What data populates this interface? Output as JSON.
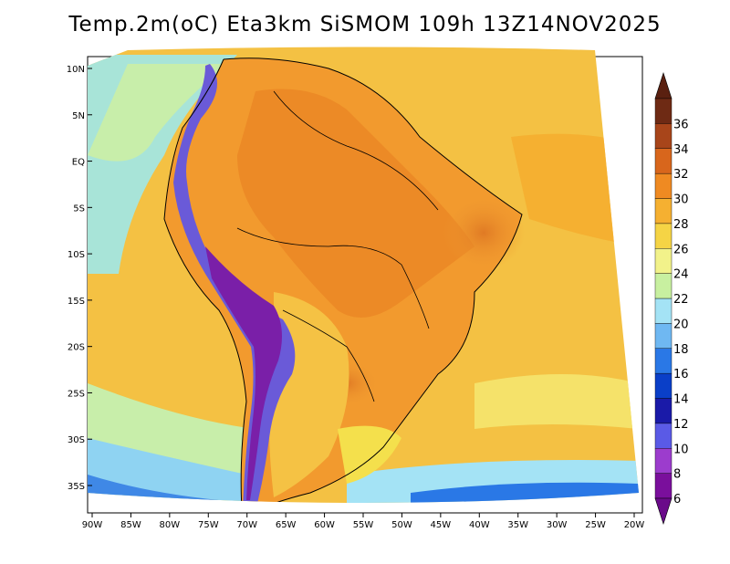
{
  "title": "Temp.2m(oC) Eta3km SiSMOM 109h 13Z14NOV2025",
  "map": {
    "variable": "2 m temperature",
    "units": "oC",
    "lat_ticks": [
      {
        "lat": 10,
        "label": "10N"
      },
      {
        "lat": 5,
        "label": "5N"
      },
      {
        "lat": 0,
        "label": "EQ"
      },
      {
        "lat": -5,
        "label": "5S"
      },
      {
        "lat": -10,
        "label": "10S"
      },
      {
        "lat": -15,
        "label": "15S"
      },
      {
        "lat": -20,
        "label": "20S"
      },
      {
        "lat": -25,
        "label": "25S"
      },
      {
        "lat": -30,
        "label": "30S"
      },
      {
        "lat": -35,
        "label": "35S"
      }
    ],
    "lon_ticks": [
      {
        "lon": -90,
        "label": "90W"
      },
      {
        "lon": -85,
        "label": "85W"
      },
      {
        "lon": -80,
        "label": "80W"
      },
      {
        "lon": -75,
        "label": "75W"
      },
      {
        "lon": -70,
        "label": "70W"
      },
      {
        "lon": -65,
        "label": "65W"
      },
      {
        "lon": -60,
        "label": "60W"
      },
      {
        "lon": -55,
        "label": "55W"
      },
      {
        "lon": -50,
        "label": "50W"
      },
      {
        "lon": -45,
        "label": "45W"
      },
      {
        "lon": -40,
        "label": "40W"
      },
      {
        "lon": -35,
        "label": "35W"
      },
      {
        "lon": -30,
        "label": "30W"
      },
      {
        "lon": -25,
        "label": "25W"
      },
      {
        "lon": -20,
        "label": "20W"
      }
    ]
  },
  "colorbar": {
    "levels": [
      "6",
      "8",
      "10",
      "12",
      "14",
      "16",
      "18",
      "20",
      "22",
      "24",
      "26",
      "28",
      "30",
      "32",
      "34",
      "36"
    ],
    "colors": [
      "#7a0f9c",
      "#9c3ccd",
      "#5a5ae6",
      "#1a1aa8",
      "#0a3fc8",
      "#2a78e6",
      "#6fb8f2",
      "#a4e3f5",
      "#c8f0a0",
      "#f2f28a",
      "#f5d445",
      "#f5b031",
      "#ef8a22",
      "#d8661c",
      "#a8451a",
      "#6e2a14"
    ],
    "below_color": "#6a0a8a",
    "above_color": "#5a2010"
  },
  "colors": {
    "ocean_warm": "#f4c143",
    "ocean_mid": "#f5dc55",
    "ocean_cool": "#c8eeaa",
    "land_hot": "#ec8f2a",
    "andes_cold": "#6d3aa8"
  }
}
